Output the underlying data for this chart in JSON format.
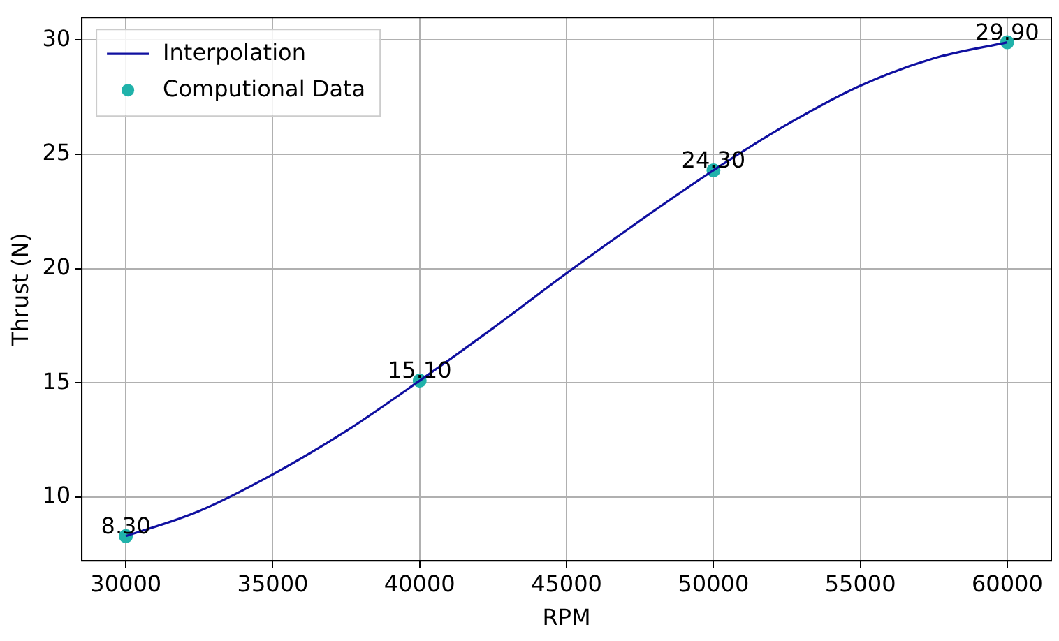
{
  "chart_data": {
    "type": "line",
    "xlabel": "RPM",
    "ylabel": "Thrust (N)",
    "xlim": [
      28500,
      61500
    ],
    "xticks": [
      30000,
      35000,
      40000,
      45000,
      50000,
      55000,
      60000
    ],
    "ylim": [
      7.22,
      30.98
    ],
    "yticks": [
      10,
      15,
      20,
      25,
      30
    ],
    "grid": true,
    "legend": "top left",
    "series": [
      {
        "name": "Interpolation",
        "color": "#1010a0",
        "marker": "none",
        "x": [
          30000,
          32500,
          35000,
          37500,
          40000,
          42500,
          45000,
          47500,
          50000,
          52500,
          55000,
          57500,
          60000
        ],
        "values": [
          8.3,
          9.4,
          11.0,
          12.9,
          15.1,
          17.4,
          19.8,
          22.1,
          24.3,
          26.3,
          28.0,
          29.2,
          29.9
        ]
      },
      {
        "name": "Computional Data",
        "type": "scatter",
        "color": "#20b2aa",
        "marker": "circle",
        "x": [
          30000,
          40000,
          50000,
          60000
        ],
        "values": [
          8.3,
          15.1,
          24.3,
          29.9
        ],
        "value_labels": [
          "8.30",
          "15.10",
          "24.30",
          "29.90"
        ]
      }
    ]
  }
}
